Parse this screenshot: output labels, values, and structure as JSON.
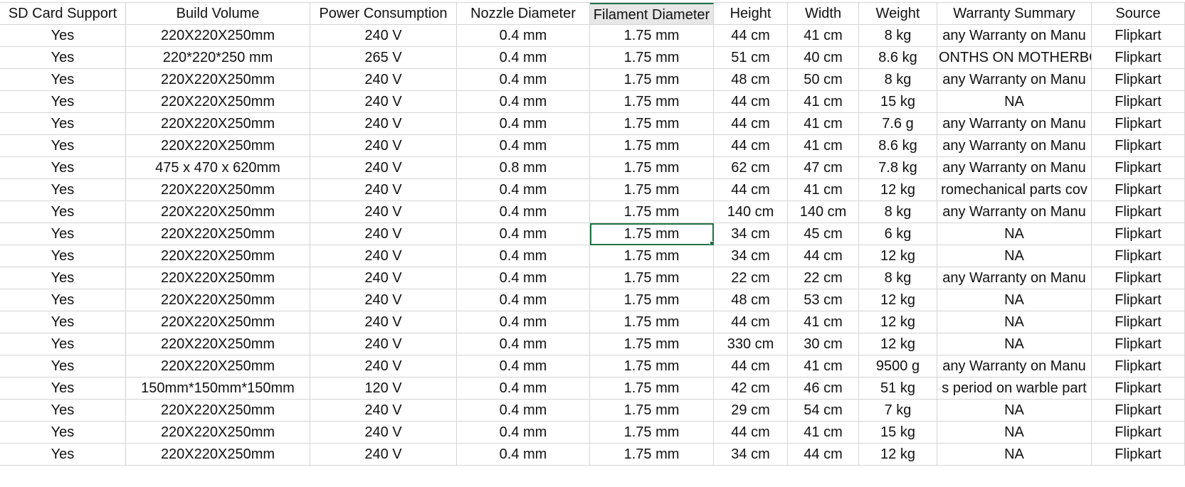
{
  "sheet": {
    "headers": [
      "SD Card Support",
      "Build Volume",
      "Power Consumption",
      "Nozzle Diameter",
      "Filament Diameter",
      "Height",
      "Width",
      "Weight",
      "Warranty Summary",
      "Source"
    ],
    "rows": [
      [
        "Yes",
        "220X220X250mm",
        "240 V",
        "0.4 mm",
        "1.75 mm",
        "44 cm",
        "41 cm",
        "8 kg",
        "any Warranty on Manu",
        "Flipkart"
      ],
      [
        "Yes",
        "220*220*250 mm",
        "265 V",
        "0.4 mm",
        "1.75 mm",
        "51 cm",
        "40 cm",
        "8.6 kg",
        "ONTHS ON MOTHERBO",
        "Flipkart"
      ],
      [
        "Yes",
        "220X220X250mm",
        "240 V",
        "0.4 mm",
        "1.75 mm",
        "48 cm",
        "50 cm",
        "8 kg",
        "any Warranty on Manu",
        "Flipkart"
      ],
      [
        "Yes",
        "220X220X250mm",
        "240 V",
        "0.4 mm",
        "1.75 mm",
        "44 cm",
        "41 cm",
        "15 kg",
        "NA",
        "Flipkart"
      ],
      [
        "Yes",
        "220X220X250mm",
        "240 V",
        "0.4 mm",
        "1.75 mm",
        "44 cm",
        "41 cm",
        "7.6 g",
        "any Warranty on Manu",
        "Flipkart"
      ],
      [
        "Yes",
        "220X220X250mm",
        "240 V",
        "0.4 mm",
        "1.75 mm",
        "44 cm",
        "41 cm",
        "8.6 kg",
        "any Warranty on Manu",
        "Flipkart"
      ],
      [
        "Yes",
        "475 x 470 x 620mm",
        "240 V",
        "0.8 mm",
        "1.75 mm",
        "62 cm",
        "47 cm",
        "7.8 kg",
        "any Warranty on Manu",
        "Flipkart"
      ],
      [
        "Yes",
        "220X220X250mm",
        "240 V",
        "0.4 mm",
        "1.75 mm",
        "44 cm",
        "41 cm",
        "12 kg",
        "romechanical parts cov",
        "Flipkart"
      ],
      [
        "Yes",
        "220X220X250mm",
        "240 V",
        "0.4 mm",
        "1.75 mm",
        "140 cm",
        "140 cm",
        "8 kg",
        "any Warranty on Manu",
        "Flipkart"
      ],
      [
        "Yes",
        "220X220X250mm",
        "240 V",
        "0.4 mm",
        "1.75 mm",
        "34 cm",
        "45 cm",
        "6 kg",
        "NA",
        "Flipkart"
      ],
      [
        "Yes",
        "220X220X250mm",
        "240 V",
        "0.4 mm",
        "1.75 mm",
        "34 cm",
        "44 cm",
        "12 kg",
        "NA",
        "Flipkart"
      ],
      [
        "Yes",
        "220X220X250mm",
        "240 V",
        "0.4 mm",
        "1.75 mm",
        "22 cm",
        "22 cm",
        "8 kg",
        "any Warranty on Manu",
        "Flipkart"
      ],
      [
        "Yes",
        "220X220X250mm",
        "240 V",
        "0.4 mm",
        "1.75 mm",
        "48 cm",
        "53 cm",
        "12 kg",
        "NA",
        "Flipkart"
      ],
      [
        "Yes",
        "220X220X250mm",
        "240 V",
        "0.4 mm",
        "1.75 mm",
        "44 cm",
        "41 cm",
        "12 kg",
        "NA",
        "Flipkart"
      ],
      [
        "Yes",
        "220X220X250mm",
        "240 V",
        "0.4 mm",
        "1.75 mm",
        "330 cm",
        "30 cm",
        "12 kg",
        "NA",
        "Flipkart"
      ],
      [
        "Yes",
        "220X220X250mm",
        "240 V",
        "0.4 mm",
        "1.75 mm",
        "44 cm",
        "41 cm",
        "9500 g",
        "any Warranty on Manu",
        "Flipkart"
      ],
      [
        "Yes",
        "150mm*150mm*150mm",
        "120 V",
        "0.4 mm",
        "1.75 mm",
        "42 cm",
        "46 cm",
        "51 kg",
        "s period on warble part",
        "Flipkart"
      ],
      [
        "Yes",
        "220X220X250mm",
        "240 V",
        "0.4 mm",
        "1.75 mm",
        "29 cm",
        "54 cm",
        "7 kg",
        "NA",
        "Flipkart"
      ],
      [
        "Yes",
        "220X220X250mm",
        "240 V",
        "0.4 mm",
        "1.75 mm",
        "44 cm",
        "41 cm",
        "15 kg",
        "NA",
        "Flipkart"
      ],
      [
        "Yes",
        "220X220X250mm",
        "240 V",
        "0.4 mm",
        "1.75 mm",
        "34 cm",
        "44 cm",
        "12 kg",
        "NA",
        "Flipkart"
      ]
    ],
    "selected": {
      "row": 9,
      "col": 4
    },
    "accent_color": "#217346",
    "grid_color": "#d4d4d4"
  }
}
